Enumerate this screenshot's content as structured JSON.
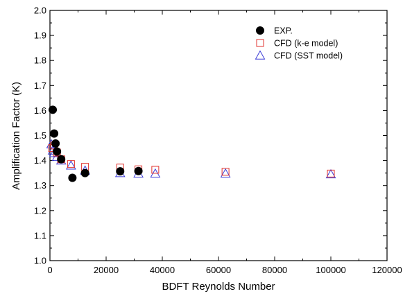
{
  "chart_data": {
    "type": "scatter",
    "title": "",
    "xlabel": "BDFT Reynolds Number",
    "ylabel": "Amplification Factor (K)",
    "xlim": [
      0,
      120000
    ],
    "ylim": [
      1.0,
      2.0
    ],
    "x_ticks": [
      "0",
      "20000",
      "40000",
      "60000",
      "80000",
      "100000",
      "120000"
    ],
    "y_ticks": [
      "1.0",
      "1.1",
      "1.2",
      "1.3",
      "1.4",
      "1.5",
      "1.6",
      "1.7",
      "1.8",
      "1.9",
      "2.0"
    ],
    "grid": false,
    "legend_position": "top-right",
    "series": [
      {
        "name": "EXP.",
        "marker": "filled-circle",
        "color": "#000000",
        "points": [
          [
            1000,
            1.603
          ],
          [
            1500,
            1.508
          ],
          [
            2000,
            1.468
          ],
          [
            2500,
            1.436
          ],
          [
            4000,
            1.405
          ],
          [
            8000,
            1.331
          ],
          [
            12500,
            1.35
          ],
          [
            25000,
            1.357
          ],
          [
            31500,
            1.358
          ]
        ]
      },
      {
        "name": "CFD (k-e model)",
        "marker": "open-square",
        "color": "#e0302c",
        "points": [
          [
            800,
            1.45
          ],
          [
            1500,
            1.46
          ],
          [
            2500,
            1.432
          ],
          [
            4000,
            1.405
          ],
          [
            7500,
            1.386
          ],
          [
            12500,
            1.375
          ],
          [
            25000,
            1.372
          ],
          [
            31500,
            1.365
          ],
          [
            37500,
            1.363
          ],
          [
            62500,
            1.355
          ],
          [
            100000,
            1.348
          ]
        ]
      },
      {
        "name": "CFD (SST model)",
        "marker": "open-triangle",
        "color": "#3b3bd6",
        "points": [
          [
            500,
            1.465
          ],
          [
            1000,
            1.44
          ],
          [
            1500,
            1.43
          ],
          [
            2500,
            1.415
          ],
          [
            4000,
            1.4
          ],
          [
            7500,
            1.38
          ],
          [
            12500,
            1.36
          ],
          [
            25000,
            1.35
          ],
          [
            31500,
            1.348
          ],
          [
            37500,
            1.348
          ],
          [
            62500,
            1.348
          ],
          [
            100000,
            1.345
          ]
        ]
      }
    ]
  }
}
